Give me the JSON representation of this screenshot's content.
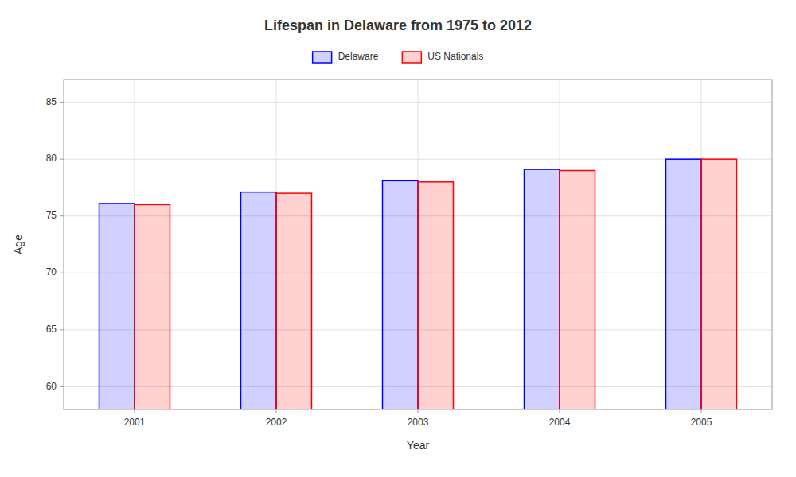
{
  "chart_data": {
    "type": "bar",
    "title": "Lifespan in Delaware from 1975 to 2012",
    "xlabel": "Year",
    "ylabel": "Age",
    "categories": [
      "2001",
      "2002",
      "2003",
      "2004",
      "2005"
    ],
    "series": [
      {
        "name": "Delaware",
        "color": "#0000ff",
        "values": [
          76.1,
          77.1,
          78.1,
          79.1,
          80.0
        ]
      },
      {
        "name": "US Nationals",
        "color": "#ff0000",
        "values": [
          76.0,
          77.0,
          78.0,
          79.0,
          80.0
        ]
      }
    ],
    "ylim": [
      58,
      87
    ],
    "yticks": [
      60,
      65,
      70,
      75,
      80,
      85
    ],
    "grid": true,
    "legend": "top"
  }
}
